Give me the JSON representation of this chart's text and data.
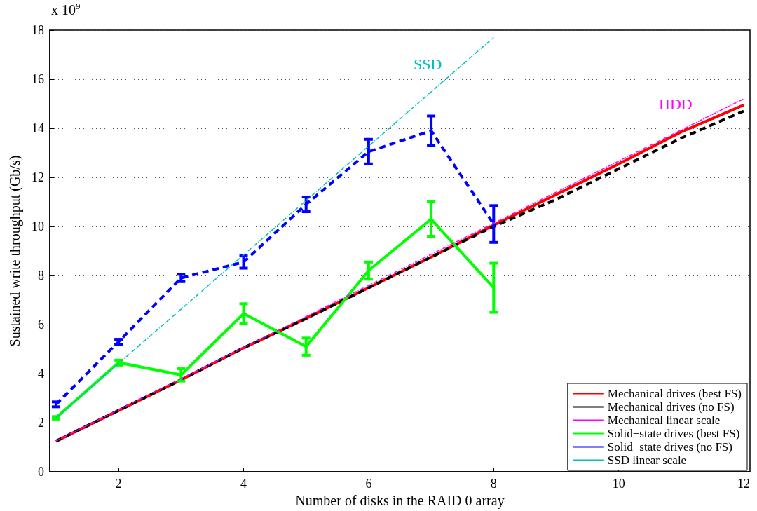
{
  "chart_data": {
    "type": "line",
    "xlabel": "Number of disks in the RAID 0 array",
    "ylabel": "Sustained write throughput (Gb/s)",
    "xlim": [
      0.9,
      12.1
    ],
    "xticks": [
      2,
      4,
      6,
      8,
      10,
      12
    ],
    "ylim": [
      0,
      18
    ],
    "yticks": [
      0,
      2,
      4,
      6,
      8,
      10,
      12,
      14,
      16,
      18
    ],
    "grid": "y",
    "legend": "bottom right",
    "marker": "none",
    "annotations": [
      "x 10$^{9}$",
      "SSD",
      "HDD"
    ],
    "series": [
      {
        "name": "Mechanical drives (best FS)",
        "color": "#ff0000",
        "line_style": "solid",
        "x": [
          1,
          2,
          3,
          4,
          5,
          6,
          7,
          8,
          9,
          10,
          11,
          12
        ],
        "values": [
          1.25,
          2.5,
          3.75,
          5.05,
          6.25,
          7.5,
          8.75,
          10.05,
          11.3,
          12.55,
          13.85,
          14.95
        ]
      },
      {
        "name": "Mechanical drives (no FS)",
        "color": "#000000",
        "line_style": "dashed",
        "x": [
          1,
          2,
          3,
          4,
          5,
          6,
          7,
          8,
          9,
          10,
          11,
          12
        ],
        "values": [
          1.25,
          2.5,
          3.75,
          5.05,
          6.25,
          7.5,
          8.75,
          10.0,
          11.1,
          12.35,
          13.6,
          14.7
        ]
      },
      {
        "name": "Mechanical linear scale",
        "color": "#ff00ff",
        "line_style": "dotted",
        "x": [
          1,
          12
        ],
        "values": [
          1.26,
          15.2
        ]
      },
      {
        "name": "Solid−state drives (best FS)",
        "color": "#00ff00",
        "line_style": "solid",
        "x": [
          1,
          2,
          3,
          4,
          5,
          6,
          7,
          8
        ],
        "values": [
          2.2,
          4.45,
          3.95,
          6.45,
          5.1,
          8.2,
          10.3,
          7.5
        ],
        "errors": [
          0.05,
          0.1,
          0.25,
          0.4,
          0.35,
          0.35,
          0.7,
          1.0
        ]
      },
      {
        "name": "Solid−state drives (no FS)",
        "color": "#0000ff",
        "line_style": "dashed",
        "x": [
          1,
          2,
          3,
          4,
          5,
          6,
          7,
          8
        ],
        "values": [
          2.75,
          5.3,
          7.9,
          8.55,
          10.9,
          13.05,
          13.9,
          10.1
        ],
        "errors": [
          0.1,
          0.1,
          0.15,
          0.25,
          0.3,
          0.5,
          0.6,
          0.75
        ]
      },
      {
        "name": "SSD linear scale",
        "color": "#00bfbf",
        "line_style": "dotted",
        "x": [
          1,
          8
        ],
        "values": [
          2.2,
          17.7
        ]
      }
    ]
  }
}
